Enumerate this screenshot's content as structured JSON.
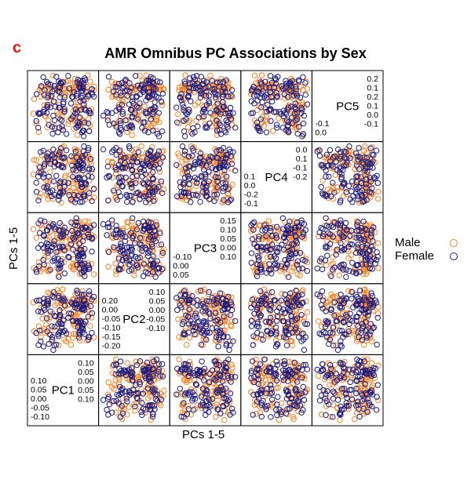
{
  "panel_letter": "c",
  "chart_data": {
    "type": "scatter",
    "subtype": "scatterplot-matrix",
    "title": "AMR Omnibus PC Associations by Sex",
    "xlabel": "PCs 1-5",
    "ylabel": "PCs 1-5",
    "grid": false,
    "legend_position": "right",
    "variables": [
      "PC1",
      "PC2",
      "PC3",
      "PC4",
      "PC5"
    ],
    "series": [
      {
        "name": "Male",
        "color": "#f58220"
      },
      {
        "name": "Female",
        "color": "#1a1a80"
      }
    ],
    "diagonal": [
      {
        "label": "PC1",
        "ticks_low": [
          "0.10",
          "0.05",
          "0.00",
          "-0.05",
          "-0.10"
        ],
        "ticks_high": [
          "0.10",
          "0.05",
          "0.00",
          "0.05",
          "0.10"
        ],
        "range": [
          -0.12,
          0.12
        ]
      },
      {
        "label": "PC2",
        "ticks_low": [
          "0.20",
          "0.00",
          "-0.05",
          "-0.10",
          "-0.15",
          "-0.20"
        ],
        "ticks_high": [
          "0.10",
          "0.05",
          "0.00",
          "-0.05",
          "-0.10"
        ],
        "range": [
          -0.23,
          0.12
        ]
      },
      {
        "label": "PC3",
        "ticks_low": [
          "-0.10",
          "0.00",
          "0.05"
        ],
        "ticks_high": [
          "0.15",
          "0.10",
          "0.05",
          "0.00",
          "0.10"
        ],
        "range": [
          -0.12,
          0.17
        ]
      },
      {
        "label": "PC4",
        "ticks_low": [
          "0.1",
          "0.0",
          "-0.2",
          "-0.1"
        ],
        "ticks_high": [
          "0.0",
          "0.1",
          "-0.1",
          "-0.2"
        ],
        "range": [
          -0.24,
          0.13
        ]
      },
      {
        "label": "PC5",
        "ticks_low": [
          "-0.1",
          "0.0"
        ],
        "ticks_high": [
          "0.2",
          "0.1",
          "0.2",
          "0.1",
          "0.0",
          "-0.1"
        ],
        "range": [
          -0.14,
          0.25
        ]
      }
    ],
    "n_points_per_series": 120
  }
}
